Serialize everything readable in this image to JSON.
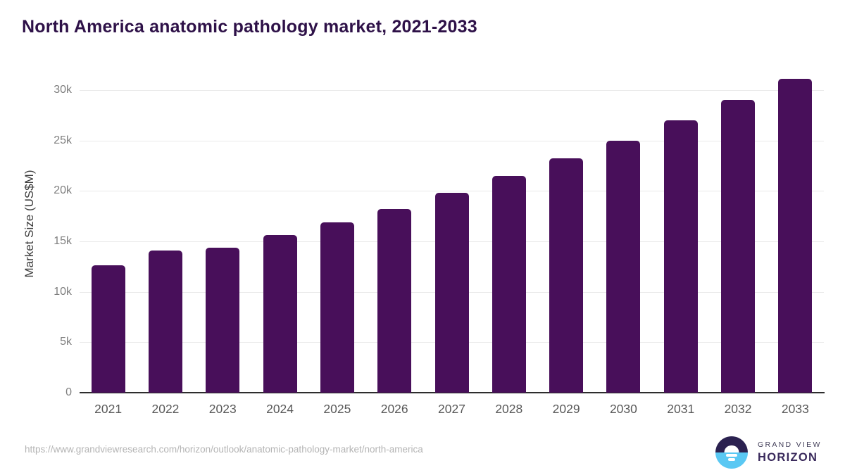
{
  "chart": {
    "title": "North America anatomic pathology market, 2021-2033",
    "ylabel": "Market Size (US$M)"
  },
  "chart_data": {
    "type": "bar",
    "title": "North America anatomic pathology market, 2021-2033",
    "xlabel": "",
    "ylabel": "Market Size (US$M)",
    "categories": [
      "2021",
      "2022",
      "2023",
      "2024",
      "2025",
      "2026",
      "2027",
      "2028",
      "2029",
      "2030",
      "2031",
      "2032",
      "2033"
    ],
    "values": [
      12600,
      14100,
      14350,
      15600,
      16850,
      18200,
      19800,
      21500,
      23250,
      25000,
      27000,
      29050,
      31150
    ],
    "unit": "US$M (thousands shown as k)",
    "ylim": [
      0,
      32000
    ],
    "yticks": [
      0,
      5000,
      10000,
      15000,
      20000,
      25000,
      30000
    ],
    "ytick_labels": [
      "0",
      "5k",
      "10k",
      "15k",
      "20k",
      "25k",
      "30k"
    ],
    "grid": "horizontal",
    "legend": "none",
    "bar_color": "#480f5a"
  },
  "colors": {
    "bar": "#480f5a",
    "title_text": "#2e1148",
    "gridline": "#e9e9e9",
    "axis_line": "#2d2d2d",
    "x_tick_text": "#595959",
    "y_tick_text": "#7f7f7f",
    "url_text": "#b4b4b4",
    "logo_top": "#2b2150",
    "logo_bottom": "#5ac8f3",
    "logo_horizon_text": "#3a2a5c"
  },
  "footer": {
    "url": "https://www.grandviewresearch.com/horizon/outlook/anatomic-pathology-market/north-america",
    "logo": {
      "line1": "GRAND VIEW",
      "line2": "HORIZON"
    }
  }
}
